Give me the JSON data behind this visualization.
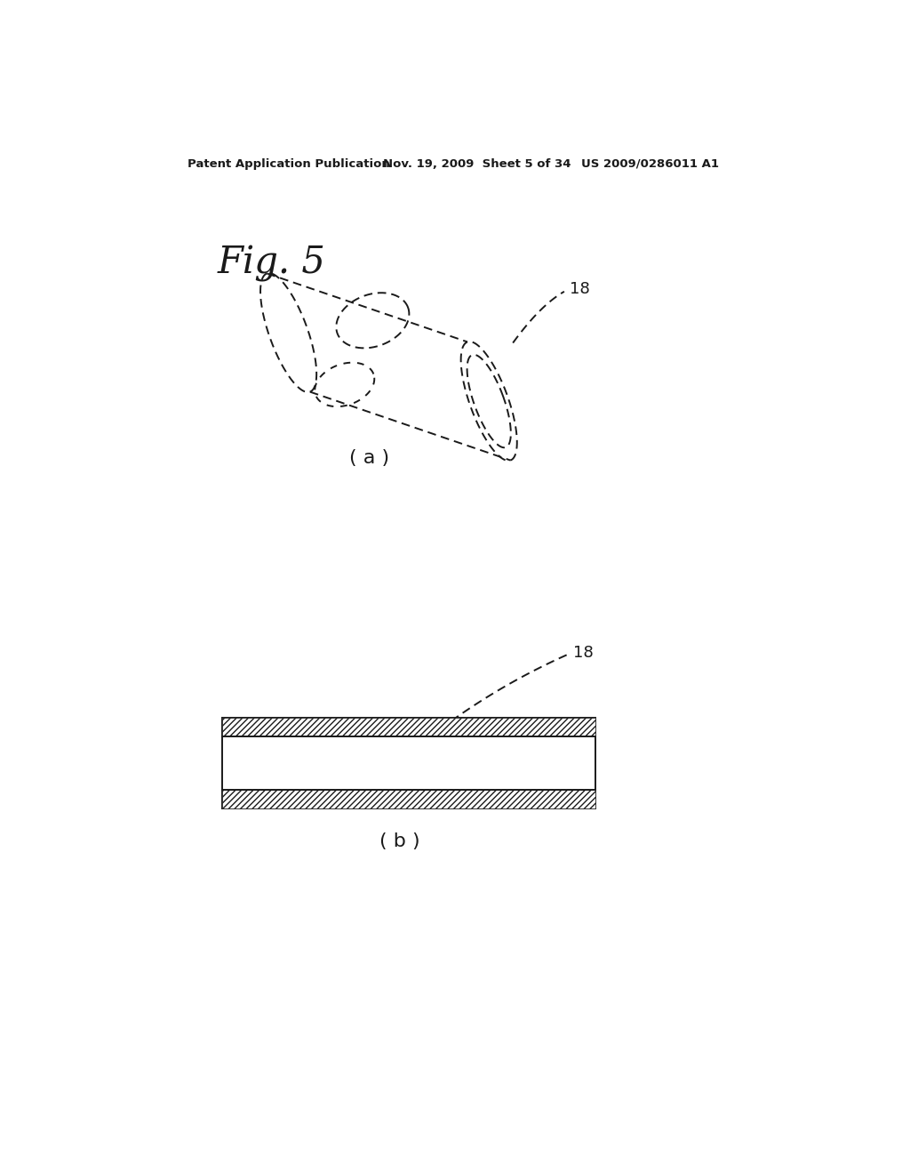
{
  "bg_color": "#ffffff",
  "header_left": "Patent Application Publication",
  "header_mid": "Nov. 19, 2009  Sheet 5 of 34",
  "header_right": "US 2009/0286011 A1",
  "fig_label": "Fig. 5",
  "sub_label_a": "( a )",
  "sub_label_b": "( b )",
  "ref_number": "18",
  "line_color": "#1a1a1a",
  "dot_dash": [
    4,
    3
  ]
}
